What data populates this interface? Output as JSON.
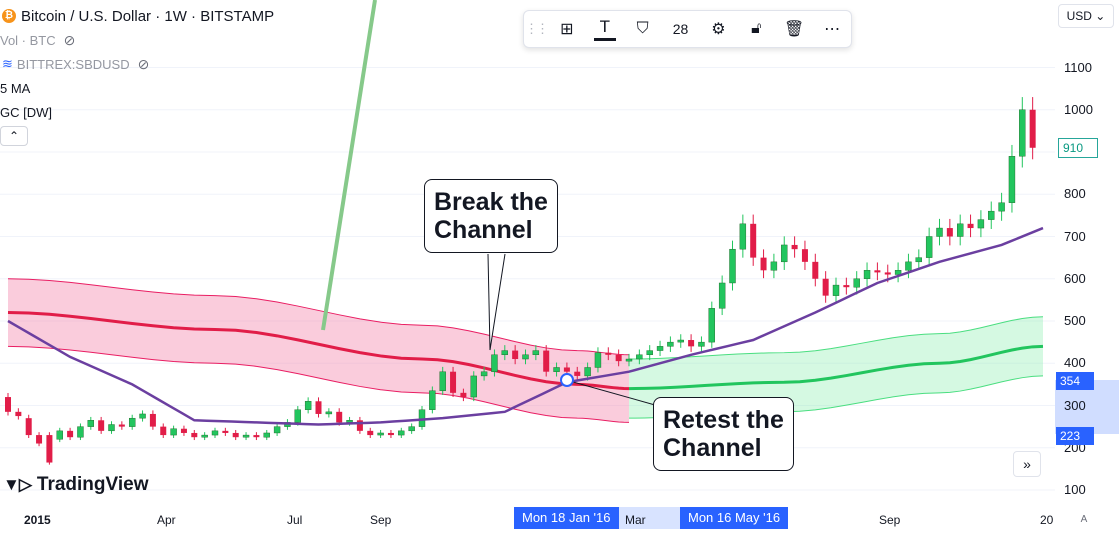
{
  "legend": {
    "symbol_icon": "bitcoin-icon",
    "title": "Bitcoin / U.S. Dollar · 1W · BITSTAMP",
    "vol": "Vol · BTC",
    "overlay": "BITTREX:SBDUSD",
    "ma": "5 MA",
    "gc": "GC [DW]"
  },
  "toolbar": {
    "icons": [
      "grip-icon",
      "add-object-icon",
      "text-icon",
      "fill-color-icon",
      "lock-icon",
      "delete-icon",
      "more-icon",
      "settings-icon"
    ],
    "font_size": "28"
  },
  "currency": "USD",
  "callouts": {
    "break": [
      "Break the",
      "Channel"
    ],
    "retest": [
      "Retest the",
      "Channel"
    ]
  },
  "logo": "TradingView",
  "price_tags": {
    "current": "910",
    "range_high": "354",
    "range_low": "223"
  },
  "x_highlights": {
    "a": "Mon 18 Jan '16",
    "b": "Mon 16 May '16"
  },
  "auto_label": "A",
  "chart_data": {
    "type": "candlestick",
    "title": "Bitcoin / U.S. Dollar · 1W · BITSTAMP",
    "y_ticks": [
      100,
      200,
      300,
      400,
      500,
      600,
      700,
      800,
      900,
      1000,
      1100
    ],
    "y_tick_labels": [
      "100",
      "200",
      "300",
      "400",
      "500",
      "600",
      "700",
      "800",
      "",
      "1000",
      "1100"
    ],
    "x_ticks": [
      "2015",
      "Apr",
      "Jul",
      "Sep",
      "Mar",
      "Sep",
      "20"
    ],
    "colors": {
      "up": "#22c55e",
      "down": "#e11d48",
      "ma": "#6b3fa0",
      "channel_bear": "#e11d48",
      "channel_bull": "#22c55e"
    },
    "candles_start": "2015-01-05",
    "candles": [
      [
        320,
        285
      ],
      [
        285,
        275
      ],
      [
        270,
        230
      ],
      [
        230,
        210
      ],
      [
        230,
        165
      ],
      [
        220,
        240
      ],
      [
        240,
        225
      ],
      [
        225,
        250
      ],
      [
        250,
        265
      ],
      [
        265,
        240
      ],
      [
        240,
        255
      ],
      [
        255,
        250
      ],
      [
        250,
        270
      ],
      [
        270,
        280
      ],
      [
        280,
        250
      ],
      [
        250,
        230
      ],
      [
        230,
        245
      ],
      [
        245,
        235
      ],
      [
        235,
        225
      ],
      [
        225,
        230
      ],
      [
        230,
        240
      ],
      [
        240,
        235
      ],
      [
        235,
        225
      ],
      [
        225,
        230
      ],
      [
        230,
        225
      ],
      [
        225,
        235
      ],
      [
        235,
        250
      ],
      [
        250,
        260
      ],
      [
        260,
        290
      ],
      [
        290,
        310
      ],
      [
        310,
        280
      ],
      [
        280,
        285
      ],
      [
        285,
        260
      ],
      [
        260,
        265
      ],
      [
        265,
        240
      ],
      [
        240,
        230
      ],
      [
        230,
        235
      ],
      [
        235,
        230
      ],
      [
        230,
        240
      ],
      [
        240,
        250
      ],
      [
        250,
        290
      ],
      [
        290,
        335
      ],
      [
        335,
        380
      ],
      [
        380,
        330
      ],
      [
        330,
        320
      ],
      [
        320,
        370
      ],
      [
        370,
        380
      ],
      [
        380,
        420
      ],
      [
        420,
        430
      ],
      [
        430,
        410
      ],
      [
        410,
        420
      ],
      [
        420,
        430
      ],
      [
        430,
        380
      ],
      [
        380,
        390
      ],
      [
        390,
        380
      ],
      [
        380,
        370
      ],
      [
        370,
        390
      ],
      [
        390,
        425
      ],
      [
        425,
        420
      ],
      [
        420,
        405
      ],
      [
        405,
        410
      ],
      [
        410,
        420
      ],
      [
        420,
        430
      ],
      [
        430,
        440
      ],
      [
        440,
        450
      ],
      [
        450,
        455
      ],
      [
        455,
        440
      ],
      [
        440,
        450
      ],
      [
        450,
        530
      ],
      [
        530,
        590
      ],
      [
        590,
        670
      ],
      [
        670,
        730
      ],
      [
        730,
        650
      ],
      [
        650,
        620
      ],
      [
        620,
        640
      ],
      [
        640,
        680
      ],
      [
        680,
        670
      ],
      [
        670,
        640
      ],
      [
        640,
        600
      ],
      [
        600,
        560
      ],
      [
        560,
        585
      ],
      [
        585,
        580
      ],
      [
        580,
        600
      ],
      [
        600,
        620
      ],
      [
        620,
        615
      ],
      [
        615,
        610
      ],
      [
        610,
        620
      ],
      [
        620,
        640
      ],
      [
        640,
        650
      ],
      [
        650,
        700
      ],
      [
        700,
        720
      ],
      [
        720,
        700
      ],
      [
        700,
        730
      ],
      [
        730,
        720
      ],
      [
        720,
        740
      ],
      [
        740,
        760
      ],
      [
        760,
        780
      ],
      [
        780,
        890
      ],
      [
        890,
        1000
      ],
      [
        1000,
        910
      ]
    ],
    "ma5": [
      [
        0,
        500
      ],
      [
        6,
        415
      ],
      [
        12,
        350
      ],
      [
        18,
        265
      ],
      [
        24,
        260
      ],
      [
        30,
        255
      ],
      [
        36,
        260
      ],
      [
        42,
        270
      ],
      [
        48,
        285
      ],
      [
        54,
        355
      ],
      [
        60,
        380
      ],
      [
        66,
        420
      ],
      [
        72,
        455
      ],
      [
        78,
        520
      ],
      [
        84,
        590
      ],
      [
        90,
        640
      ],
      [
        96,
        680
      ],
      [
        100,
        720
      ]
    ],
    "bear_channel": {
      "mid": [
        [
          0,
          520
        ],
        [
          20,
          480
        ],
        [
          40,
          410
        ],
        [
          55,
          350
        ],
        [
          60,
          340
        ]
      ],
      "half_width": 80
    },
    "bull_channel": {
      "mid": [
        [
          60,
          340
        ],
        [
          75,
          355
        ],
        [
          90,
          400
        ],
        [
          100,
          440
        ]
      ],
      "half_width": 70
    }
  }
}
